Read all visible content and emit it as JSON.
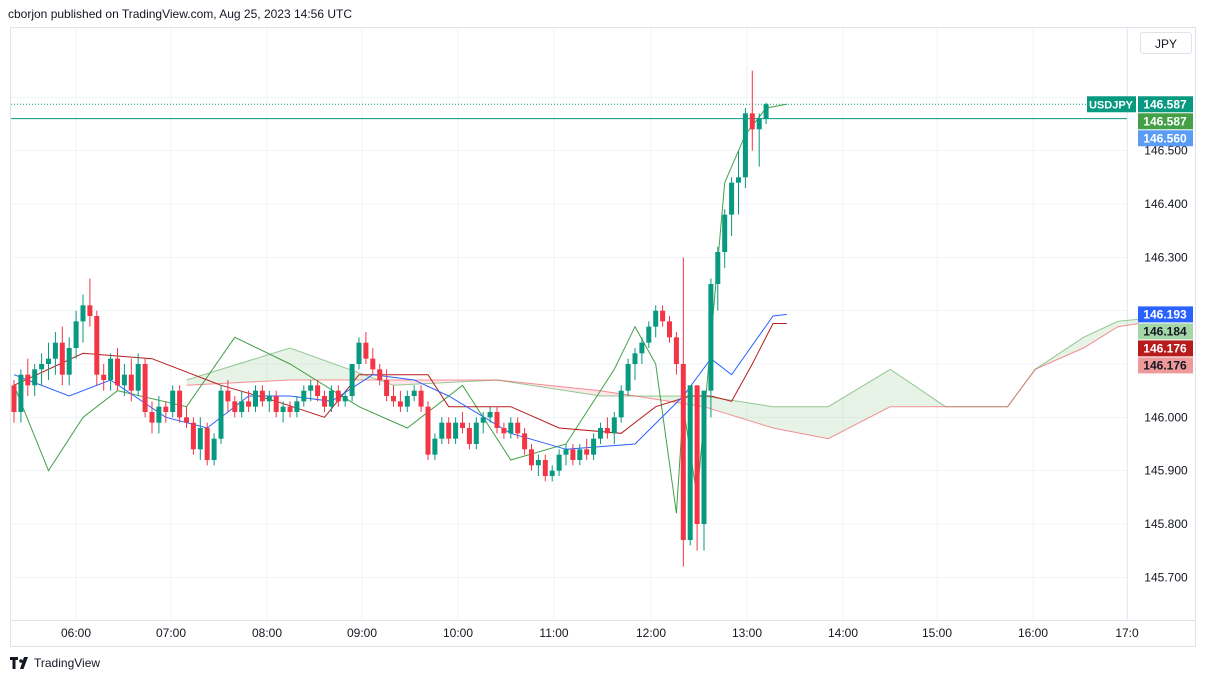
{
  "published": "cborjon published on TradingView.com, Aug 25, 2023 14:56 UTC",
  "currency_button": "JPY",
  "footer_brand": "TradingView",
  "colors": {
    "up": "#089981",
    "down": "#f23645",
    "tenkan": "#2962ff",
    "kijun": "#b71c1c",
    "chikou": "#43a047",
    "grid": "#f0f3fa"
  },
  "chart_data": {
    "type": "candlestick",
    "symbol": "USDJPY",
    "interval_minutes": 5,
    "ylim": [
      145.62,
      146.73
    ],
    "x_ticks": [
      "06:00",
      "07:00",
      "08:00",
      "09:00",
      "10:00",
      "11:00",
      "12:00",
      "13:00",
      "14:00",
      "15:00",
      "16:00",
      "17:0"
    ],
    "y_ticks": [
      "146.500",
      "146.400",
      "146.300",
      "146.000",
      "145.900",
      "145.800",
      "145.700"
    ],
    "price_labels": [
      {
        "text": "USDJPY",
        "value": "146.587",
        "color": "#089981",
        "price": 146.587
      },
      {
        "text": "",
        "value": "146.587",
        "color": "#43a047",
        "price": 146.587
      },
      {
        "text": "",
        "value": "146.560",
        "color": "#5b9cf6",
        "price": 146.56
      },
      {
        "text": "",
        "value": "146.193",
        "color": "#2962ff",
        "price": 146.193
      },
      {
        "text": "",
        "value": "146.184",
        "color": "#a5d6a7",
        "price": 146.184,
        "textColor": "#131722"
      },
      {
        "text": "",
        "value": "146.176",
        "color": "#b71c1c",
        "price": 146.176
      },
      {
        "text": "",
        "value": "146.176",
        "color": "#ef9a9a",
        "price": 146.176,
        "textColor": "#131722"
      }
    ],
    "candles": [
      [
        146.06,
        146.07,
        145.99,
        146.01
      ],
      [
        146.01,
        146.09,
        145.99,
        146.08
      ],
      [
        146.08,
        146.11,
        146.04,
        146.06
      ],
      [
        146.06,
        146.1,
        146.04,
        146.09
      ],
      [
        146.09,
        146.12,
        146.06,
        146.1
      ],
      [
        146.1,
        146.14,
        146.07,
        146.11
      ],
      [
        146.11,
        146.16,
        146.08,
        146.14
      ],
      [
        146.14,
        146.17,
        146.06,
        146.08
      ],
      [
        146.08,
        146.15,
        146.06,
        146.13
      ],
      [
        146.13,
        146.2,
        146.11,
        146.18
      ],
      [
        146.18,
        146.23,
        146.14,
        146.21
      ],
      [
        146.21,
        146.26,
        146.17,
        146.19
      ],
      [
        146.19,
        146.2,
        146.06,
        146.08
      ],
      [
        146.08,
        146.1,
        146.05,
        146.07
      ],
      [
        146.07,
        146.12,
        146.05,
        146.11
      ],
      [
        146.11,
        146.13,
        146.05,
        146.06
      ],
      [
        146.06,
        146.1,
        146.04,
        146.08
      ],
      [
        146.08,
        146.11,
        146.03,
        146.05
      ],
      [
        146.05,
        146.12,
        146.04,
        146.1
      ],
      [
        146.1,
        146.11,
        146.0,
        146.01
      ],
      [
        146.01,
        146.03,
        145.97,
        145.99
      ],
      [
        145.99,
        146.04,
        145.97,
        146.02
      ],
      [
        146.02,
        146.03,
        145.99,
        146.01
      ],
      [
        146.01,
        146.06,
        146.0,
        146.05
      ],
      [
        146.05,
        146.06,
        145.99,
        146.0
      ],
      [
        146.0,
        146.02,
        145.98,
        145.99
      ],
      [
        145.99,
        146.0,
        145.93,
        145.94
      ],
      [
        145.94,
        146.0,
        145.92,
        145.98
      ],
      [
        145.98,
        145.99,
        145.91,
        145.92
      ],
      [
        145.92,
        145.97,
        145.91,
        145.96
      ],
      [
        145.96,
        146.06,
        145.95,
        146.05
      ],
      [
        146.05,
        146.07,
        146.01,
        146.03
      ],
      [
        146.03,
        146.04,
        146.0,
        146.01
      ],
      [
        146.01,
        146.05,
        146.0,
        146.03
      ],
      [
        146.03,
        146.05,
        146.01,
        146.02
      ],
      [
        146.02,
        146.06,
        146.01,
        146.05
      ],
      [
        146.05,
        146.06,
        146.02,
        146.03
      ],
      [
        146.03,
        146.05,
        146.01,
        146.04
      ],
      [
        146.04,
        146.05,
        146.0,
        146.01
      ],
      [
        146.01,
        146.03,
        145.99,
        146.02
      ],
      [
        146.02,
        146.03,
        146.0,
        146.01
      ],
      [
        146.01,
        146.04,
        146.0,
        146.03
      ],
      [
        146.03,
        146.06,
        146.02,
        146.05
      ],
      [
        146.05,
        146.07,
        146.03,
        146.06
      ],
      [
        146.06,
        146.07,
        146.03,
        146.04
      ],
      [
        146.04,
        146.05,
        146.01,
        146.02
      ],
      [
        146.02,
        146.06,
        146.01,
        146.05
      ],
      [
        146.05,
        146.06,
        146.02,
        146.03
      ],
      [
        146.03,
        146.05,
        146.02,
        146.04
      ],
      [
        146.04,
        146.1,
        146.03,
        146.1
      ],
      [
        146.1,
        146.15,
        146.09,
        146.14
      ],
      [
        146.14,
        146.16,
        146.1,
        146.11
      ],
      [
        146.11,
        146.13,
        146.08,
        146.09
      ],
      [
        146.09,
        146.1,
        146.06,
        146.07
      ],
      [
        146.07,
        146.09,
        146.03,
        146.04
      ],
      [
        146.04,
        146.06,
        146.02,
        146.03
      ],
      [
        146.03,
        146.05,
        146.01,
        146.02
      ],
      [
        146.02,
        146.05,
        146.01,
        146.04
      ],
      [
        146.04,
        146.06,
        146.03,
        146.05
      ],
      [
        146.05,
        146.06,
        146.01,
        146.02
      ],
      [
        146.02,
        146.03,
        145.92,
        145.93
      ],
      [
        145.93,
        145.97,
        145.92,
        145.96
      ],
      [
        145.96,
        146.0,
        145.95,
        145.99
      ],
      [
        145.99,
        146.0,
        145.95,
        145.96
      ],
      [
        145.96,
        146.0,
        145.95,
        145.99
      ],
      [
        145.99,
        146.01,
        145.97,
        145.98
      ],
      [
        145.98,
        145.99,
        145.94,
        145.95
      ],
      [
        145.95,
        146.0,
        145.94,
        145.99
      ],
      [
        145.99,
        146.01,
        145.97,
        146.0
      ],
      [
        146.0,
        146.02,
        145.99,
        146.01
      ],
      [
        146.01,
        146.02,
        145.97,
        145.98
      ],
      [
        145.98,
        145.99,
        145.96,
        145.97
      ],
      [
        145.97,
        146.0,
        145.96,
        145.99
      ],
      [
        145.99,
        146.0,
        145.96,
        145.97
      ],
      [
        145.97,
        145.98,
        145.93,
        145.94
      ],
      [
        145.94,
        145.95,
        145.9,
        145.91
      ],
      [
        145.91,
        145.93,
        145.89,
        145.92
      ],
      [
        145.92,
        145.93,
        145.88,
        145.89
      ],
      [
        145.89,
        145.91,
        145.88,
        145.9
      ],
      [
        145.9,
        145.94,
        145.89,
        145.93
      ],
      [
        145.93,
        145.95,
        145.91,
        145.94
      ],
      [
        145.94,
        145.95,
        145.91,
        145.92
      ],
      [
        145.92,
        145.95,
        145.91,
        145.94
      ],
      [
        145.94,
        145.96,
        145.92,
        145.93
      ],
      [
        145.93,
        145.97,
        145.92,
        145.96
      ],
      [
        145.96,
        145.99,
        145.95,
        145.98
      ],
      [
        145.98,
        146.0,
        145.96,
        145.97
      ],
      [
        145.97,
        146.01,
        145.95,
        146.0
      ],
      [
        146.0,
        146.06,
        145.99,
        146.05
      ],
      [
        146.05,
        146.11,
        146.04,
        146.1
      ],
      [
        146.1,
        146.13,
        146.07,
        146.12
      ],
      [
        146.12,
        146.15,
        146.1,
        146.14
      ],
      [
        146.14,
        146.18,
        146.13,
        146.17
      ],
      [
        146.17,
        146.21,
        146.15,
        146.2
      ],
      [
        146.2,
        146.21,
        146.17,
        146.18
      ],
      [
        146.18,
        146.19,
        146.14,
        146.15
      ],
      [
        146.15,
        146.16,
        146.08,
        146.1
      ],
      [
        146.1,
        146.3,
        145.72,
        145.77
      ],
      [
        145.77,
        146.06,
        145.76,
        146.06
      ],
      [
        146.06,
        146.06,
        145.75,
        145.8
      ],
      [
        145.8,
        146.05,
        145.75,
        146.05
      ],
      [
        146.05,
        146.26,
        146.0,
        146.25
      ],
      [
        146.25,
        146.32,
        146.2,
        146.31
      ],
      [
        146.31,
        146.39,
        146.28,
        146.38
      ],
      [
        146.38,
        146.45,
        146.34,
        146.44
      ],
      [
        146.44,
        146.5,
        146.38,
        146.45
      ],
      [
        146.45,
        146.58,
        146.43,
        146.57
      ],
      [
        146.57,
        146.65,
        146.5,
        146.54
      ],
      [
        146.54,
        146.57,
        146.47,
        146.56
      ],
      [
        146.56,
        146.59,
        146.55,
        146.587
      ]
    ],
    "tenkan": [
      [
        0,
        146.08
      ],
      [
        8,
        146.04
      ],
      [
        14,
        146.07
      ],
      [
        22,
        146.0
      ],
      [
        28,
        145.98
      ],
      [
        34,
        146.04
      ],
      [
        40,
        146.04
      ],
      [
        46,
        146.03
      ],
      [
        52,
        146.08
      ],
      [
        58,
        146.07
      ],
      [
        63,
        146.04
      ],
      [
        72,
        145.97
      ],
      [
        80,
        145.94
      ],
      [
        90,
        145.95
      ],
      [
        97,
        146.04
      ],
      [
        101,
        146.11
      ],
      [
        104,
        146.08
      ],
      [
        110,
        146.19
      ],
      [
        112,
        146.193
      ]
    ],
    "kijun": [
      [
        0,
        146.06
      ],
      [
        10,
        146.12
      ],
      [
        20,
        146.11
      ],
      [
        30,
        146.06
      ],
      [
        38,
        146.03
      ],
      [
        45,
        146.0
      ],
      [
        50,
        146.08
      ],
      [
        60,
        146.08
      ],
      [
        63,
        146.02
      ],
      [
        72,
        146.02
      ],
      [
        79,
        145.98
      ],
      [
        88,
        145.97
      ],
      [
        93,
        146.02
      ],
      [
        98,
        146.04
      ],
      [
        101,
        146.04
      ],
      [
        104,
        146.03
      ],
      [
        107,
        146.1
      ],
      [
        110,
        146.176
      ],
      [
        112,
        146.176
      ]
    ],
    "chikou": [
      [
        0,
        146.06
      ],
      [
        5,
        145.9
      ],
      [
        10,
        146.0
      ],
      [
        15,
        146.05
      ],
      [
        25,
        146.02
      ],
      [
        32,
        146.15
      ],
      [
        40,
        146.1
      ],
      [
        50,
        146.02
      ],
      [
        57,
        145.98
      ],
      [
        65,
        146.06
      ],
      [
        72,
        145.92
      ],
      [
        80,
        145.95
      ],
      [
        87,
        146.09
      ],
      [
        90,
        146.17
      ],
      [
        93,
        146.1
      ],
      [
        96,
        145.82
      ],
      [
        97,
        146.02
      ],
      [
        99,
        145.85
      ],
      [
        103,
        146.44
      ],
      [
        106,
        146.53
      ],
      [
        109,
        146.58
      ],
      [
        112,
        146.587
      ]
    ],
    "senkou_a": [
      [
        25,
        146.07
      ],
      [
        40,
        146.13
      ],
      [
        55,
        146.06
      ],
      [
        70,
        146.07
      ],
      [
        85,
        146.04
      ],
      [
        100,
        146.04
      ],
      [
        110,
        146.02
      ],
      [
        118,
        146.02
      ],
      [
        127,
        146.09
      ],
      [
        135,
        146.02
      ],
      [
        144,
        146.02
      ],
      [
        148,
        146.09
      ],
      [
        155,
        146.15
      ],
      [
        160,
        146.18
      ],
      [
        163,
        146.184
      ]
    ],
    "senkou_b": [
      [
        25,
        146.06
      ],
      [
        40,
        146.07
      ],
      [
        55,
        146.07
      ],
      [
        70,
        146.07
      ],
      [
        85,
        146.05
      ],
      [
        100,
        146.02
      ],
      [
        110,
        145.98
      ],
      [
        118,
        145.96
      ],
      [
        127,
        146.02
      ],
      [
        135,
        146.02
      ],
      [
        144,
        146.02
      ],
      [
        148,
        146.09
      ],
      [
        155,
        146.13
      ],
      [
        160,
        146.17
      ],
      [
        163,
        146.176
      ]
    ]
  }
}
